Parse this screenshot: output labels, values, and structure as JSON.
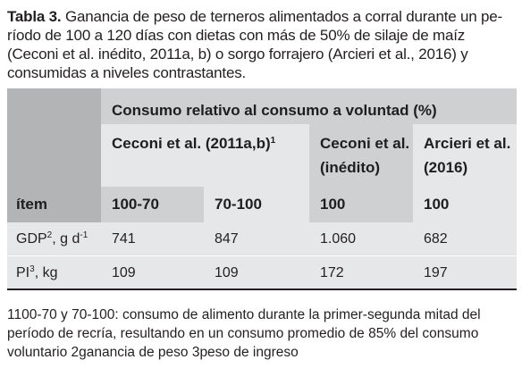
{
  "caption": {
    "label": "Tabla 3.",
    "text": "Ganancia de peso de terneros alimentados a corral durante un pe- ríodo de 100 a 120 días con dietas con más de 50% de silaje de maíz (Ceconi et al. inédito, 2011a, b) o sorgo forrajero (Arcieri et al., 2016) y consumidas a niveles contrastantes."
  },
  "table": {
    "group_header": "Consumo relativo al consumo a voluntad (%)",
    "authors": {
      "ceconi_2011": "Ceconi et al. (2011a,b)",
      "ceconi_2011_sup": "1",
      "ceconi_inedito": "Ceconi et al. (inédito)",
      "arcieri_2016": "Arcieri et al. (2016)"
    },
    "item_header": "ítem",
    "columns": [
      "100-70",
      "70-100",
      "100",
      "100"
    ],
    "rows": [
      {
        "label": "GDP",
        "label_sup": "2",
        "label_suffix": ", g d",
        "unit_sup": "-1",
        "values": [
          "741",
          "847",
          "1.060",
          "682"
        ]
      },
      {
        "label": "PI",
        "label_sup": "3",
        "label_suffix": ", kg",
        "values": [
          "109",
          "109",
          "172",
          "197"
        ]
      }
    ]
  },
  "footnote": "1100-70 y 70-100: consumo de alimento durante la primer-segunda mitad del período de recría, resultando en un consumo promedio de 85% del consumo voluntario 2ganancia de peso 3peso de ingreso"
}
